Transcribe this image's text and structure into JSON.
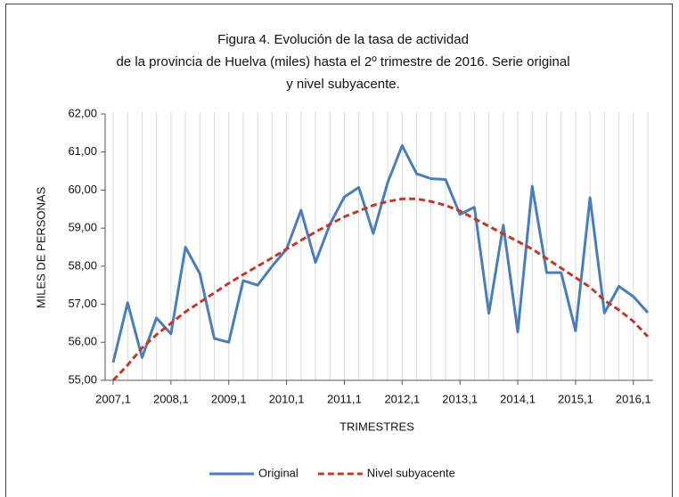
{
  "chart_data": {
    "type": "line",
    "title": [
      "Figura 4. Evolución de la tasa de actividad",
      "de la provincia de Huelva (miles) hasta el 2º trimestre de 2016. Serie original",
      "y nivel subyacente."
    ],
    "x_label": "TRIMESTRES",
    "y_label": "MILES DE PERSONAS",
    "categories": [
      "2007,1",
      null,
      null,
      null,
      "2008,1",
      null,
      null,
      null,
      "2009,1",
      null,
      null,
      null,
      "2010,1",
      null,
      null,
      null,
      "2011,1",
      null,
      null,
      null,
      "2012,1",
      null,
      null,
      null,
      "2013,1",
      null,
      null,
      null,
      "2014,1",
      null,
      null,
      null,
      "2015,1",
      null,
      null,
      null,
      "2016,1",
      null
    ],
    "series": [
      {
        "name": "Original",
        "color": "#4a7ebb",
        "dash": false,
        "values": [
          55.47,
          57.04,
          55.6,
          56.64,
          56.22,
          58.5,
          57.8,
          56.1,
          56.0,
          57.62,
          57.5,
          58.0,
          58.45,
          59.47,
          58.1,
          59.1,
          59.82,
          60.07,
          58.86,
          60.2,
          61.17,
          60.43,
          60.3,
          60.28,
          59.36,
          59.55,
          56.76,
          59.08,
          56.27,
          60.1,
          57.83,
          57.83,
          56.3,
          59.8,
          56.77,
          57.47,
          57.2,
          56.78
        ]
      },
      {
        "name": "Nivel subyacente",
        "color": "#c0392b",
        "dash": true,
        "values": [
          55.0,
          55.4,
          55.85,
          56.2,
          56.5,
          56.8,
          57.05,
          57.3,
          57.55,
          57.78,
          58.0,
          58.22,
          58.45,
          58.68,
          58.9,
          59.1,
          59.3,
          59.45,
          59.6,
          59.7,
          59.77,
          59.77,
          59.7,
          59.6,
          59.45,
          59.25,
          59.05,
          58.85,
          58.65,
          58.45,
          58.2,
          57.95,
          57.7,
          57.45,
          57.1,
          56.85,
          56.55,
          56.15
        ]
      }
    ],
    "ylim": [
      55,
      62
    ],
    "yticks": [
      {
        "value": 55,
        "label": "55,00"
      },
      {
        "value": 56,
        "label": "56,00"
      },
      {
        "value": 57,
        "label": "57,00"
      },
      {
        "value": 58,
        "label": "58,00"
      },
      {
        "value": 59,
        "label": "59,00"
      },
      {
        "value": 60,
        "label": "60,00"
      },
      {
        "value": 61,
        "label": "61,00"
      },
      {
        "value": 62,
        "label": "62,00"
      }
    ],
    "vertical_grid": true,
    "legend": "bottom"
  }
}
